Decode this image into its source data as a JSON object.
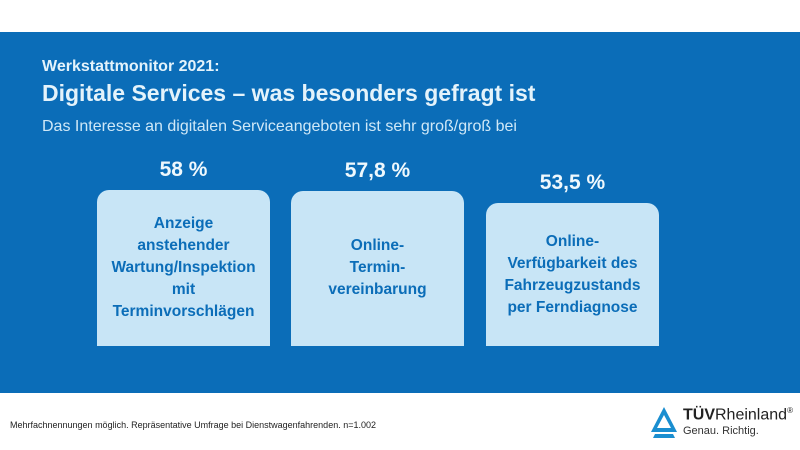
{
  "header": {
    "kicker": "Werkstattmonitor 2021:",
    "title": "Digitale Services – was besonders gefragt ist",
    "subtitle": "Das Interesse an digitalen Serviceangeboten ist sehr groß/groß bei"
  },
  "items": [
    {
      "percent_label": "58 %",
      "value": 58,
      "label": "Anzeige\nanstehender\nWartung/Inspektion\nmit\nTerminvorschlägen"
    },
    {
      "percent_label": "57,8 %",
      "value": 57.8,
      "label": "Online-\nTermin-\nvereinbarung"
    },
    {
      "percent_label": "53,5 %",
      "value": 53.5,
      "label": "Online-\nVerfügbarkeit des\nFahrzeugzustands\nper Ferndiagnose"
    }
  ],
  "footer": {
    "note": "Mehrfachnennungen möglich. Repräsentative Umfrage bei Dienstwagenfahrenden. n=1.002"
  },
  "logo": {
    "brand_bold": "TÜV",
    "brand_rest": "Rheinland",
    "registered": "®",
    "tagline": "Genau. Richtig."
  },
  "colors": {
    "band": "#0b6db8",
    "box": "#c8e5f6",
    "box_text": "#0b6db8"
  }
}
